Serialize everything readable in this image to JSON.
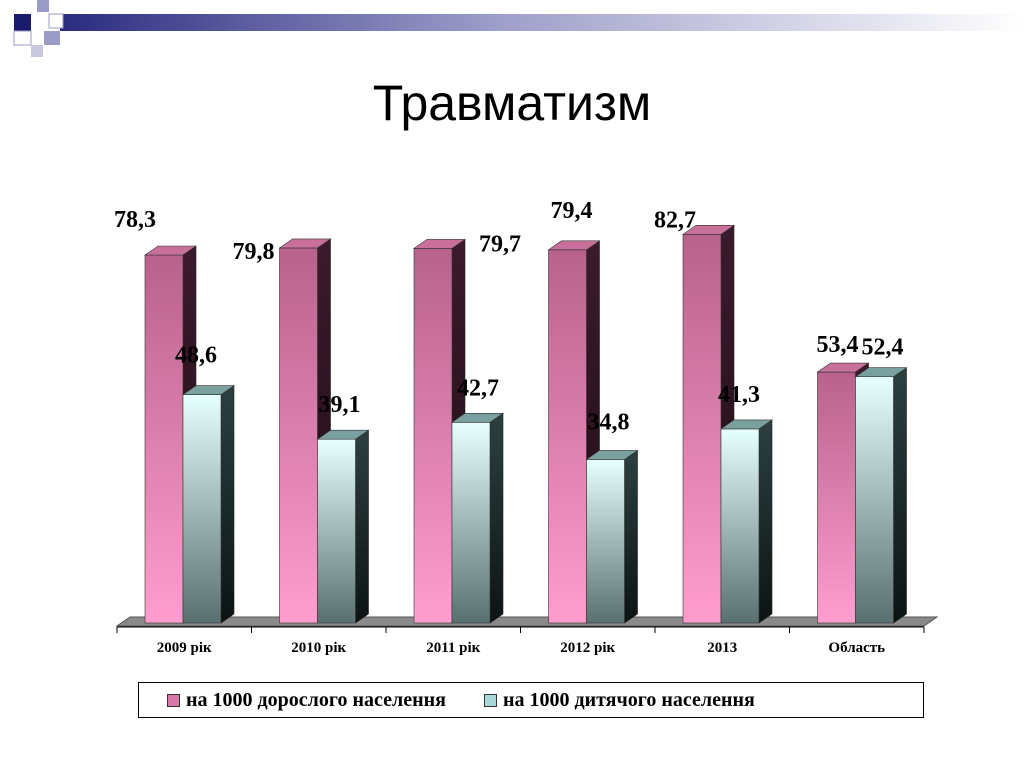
{
  "slide": {
    "title": "Травматизм"
  },
  "colors": {
    "adult_top": "#c06a93",
    "adult_bottom": "#fa9acb",
    "adult_side": "#3a1828",
    "child_top": "#e8ffff",
    "child_bottom": "#5e7474",
    "child_side": "#1a2626",
    "floor": "#808080",
    "decor_dark": "#1a1a6e",
    "decor_light": "#9b9bc8"
  },
  "chart_data": {
    "type": "bar",
    "categories": [
      "2009 рік",
      "2010 рік",
      "2011 рік",
      "2012 рік",
      "2013",
      "Область"
    ],
    "series": [
      {
        "name": "на 1000 дорослого населення",
        "values": [
          78.3,
          79.8,
          79.7,
          79.4,
          82.7,
          53.4
        ],
        "labels": [
          "78,3",
          "79,8",
          "79,7",
          "79,4",
          "82,7",
          "53,4"
        ]
      },
      {
        "name": "на 1000 дитячого населення",
        "values": [
          48.6,
          39.1,
          42.7,
          34.8,
          41.3,
          52.4
        ],
        "labels": [
          "48,6",
          "39,1",
          "42,7",
          "34,8",
          "41,3",
          "52,4"
        ]
      }
    ],
    "ylim": [
      0,
      90
    ],
    "grid": false,
    "legend_position": "bottom"
  }
}
